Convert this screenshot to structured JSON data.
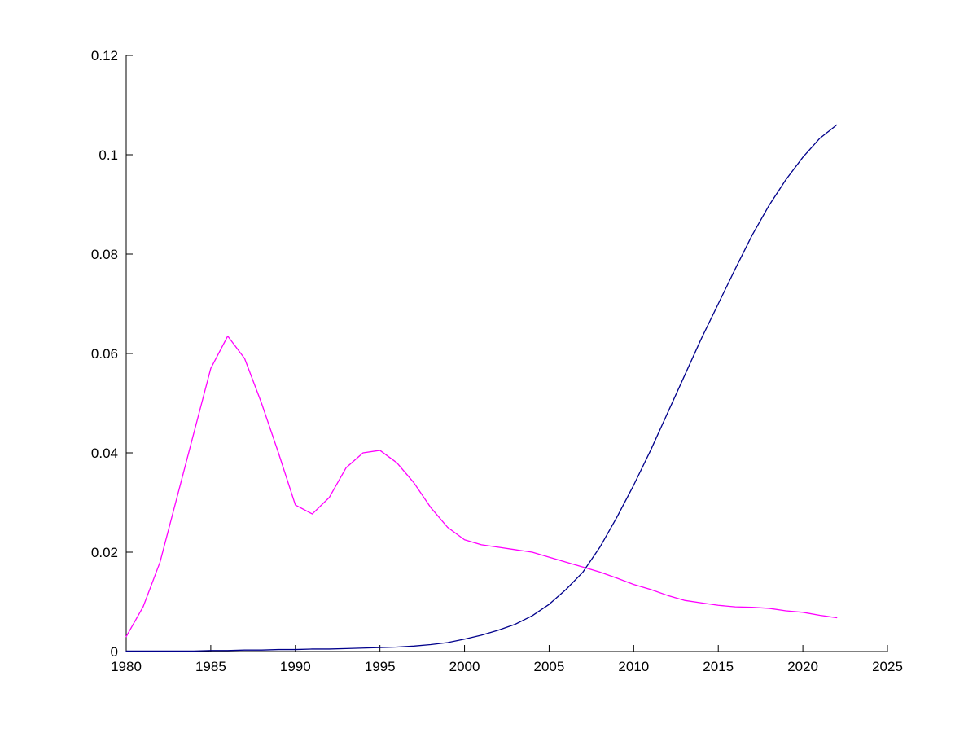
{
  "figure": {
    "background": "#ffffff",
    "axis_color": "#000000"
  },
  "chart_data": {
    "type": "line",
    "title": "",
    "xlabel": "",
    "ylabel": "",
    "grid": false,
    "legend": null,
    "xlim": [
      1980,
      2025
    ],
    "ylim": [
      0,
      0.12
    ],
    "xticks": [
      1980,
      1985,
      1990,
      1995,
      2000,
      2005,
      2010,
      2015,
      2020,
      2025
    ],
    "xtick_labels": [
      "1980",
      "1985",
      "1990",
      "1995",
      "2000",
      "2005",
      "2010",
      "2015",
      "2020",
      "2025"
    ],
    "yticks": [
      0,
      0.02,
      0.04,
      0.06,
      0.08,
      0.1,
      0.12
    ],
    "ytick_labels": [
      "0",
      "0.02",
      "0.04",
      "0.06",
      "0.08",
      "0.1",
      "0.12"
    ],
    "x": [
      1980,
      1981,
      1982,
      1983,
      1984,
      1985,
      1986,
      1987,
      1988,
      1989,
      1990,
      1991,
      1992,
      1993,
      1994,
      1995,
      1996,
      1997,
      1998,
      1999,
      2000,
      2001,
      2002,
      2003,
      2004,
      2005,
      2006,
      2007,
      2008,
      2009,
      2010,
      2011,
      2012,
      2013,
      2014,
      2015,
      2016,
      2017,
      2018,
      2019,
      2020,
      2021,
      2022
    ],
    "series": [
      {
        "name": "magenta-series",
        "color": "#ff00ff",
        "values": [
          0.003,
          0.009,
          0.018,
          0.031,
          0.044,
          0.057,
          0.0635,
          0.059,
          0.05,
          0.04,
          0.0295,
          0.0277,
          0.031,
          0.037,
          0.04,
          0.0405,
          0.038,
          0.034,
          0.029,
          0.025,
          0.0225,
          0.0215,
          0.021,
          0.0205,
          0.02,
          0.019,
          0.018,
          0.017,
          0.016,
          0.0148,
          0.0135,
          0.0125,
          0.0113,
          0.0103,
          0.0098,
          0.0093,
          0.009,
          0.0089,
          0.0087,
          0.0082,
          0.0079,
          0.0073,
          0.0068
        ]
      },
      {
        "name": "blue-series",
        "color": "#00008b",
        "values": [
          0.0001,
          0.0001,
          0.0001,
          0.0001,
          0.0001,
          0.0002,
          0.0002,
          0.0003,
          0.0003,
          0.0004,
          0.0004,
          0.0005,
          0.0005,
          0.0006,
          0.0007,
          0.0008,
          0.0009,
          0.0011,
          0.0014,
          0.0018,
          0.0025,
          0.0033,
          0.0043,
          0.0055,
          0.0072,
          0.0095,
          0.0125,
          0.016,
          0.021,
          0.027,
          0.0335,
          0.0405,
          0.048,
          0.0555,
          0.063,
          0.07,
          0.077,
          0.0838,
          0.0898,
          0.095,
          0.0995,
          0.1033,
          0.106
        ]
      }
    ]
  }
}
